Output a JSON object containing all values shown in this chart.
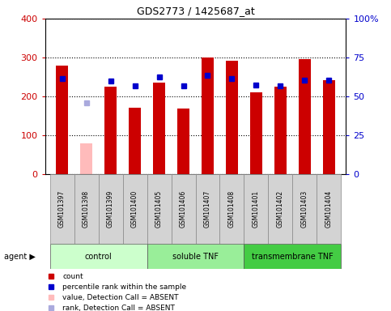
{
  "title": "GDS2773 / 1425687_at",
  "samples": [
    "GSM101397",
    "GSM101398",
    "GSM101399",
    "GSM101400",
    "GSM101405",
    "GSM101406",
    "GSM101407",
    "GSM101408",
    "GSM101401",
    "GSM101402",
    "GSM101403",
    "GSM101404"
  ],
  "counts": [
    280,
    null,
    225,
    170,
    235,
    168,
    300,
    292,
    210,
    225,
    295,
    242
  ],
  "counts_absent": [
    null,
    80,
    null,
    null,
    null,
    null,
    null,
    null,
    null,
    null,
    null,
    null
  ],
  "percentile_ranks": [
    245,
    null,
    240,
    228,
    250,
    228,
    255,
    245,
    230,
    228,
    242,
    242
  ],
  "percentile_ranks_absent": [
    null,
    183,
    null,
    null,
    null,
    null,
    null,
    null,
    null,
    null,
    null,
    null
  ],
  "groups": [
    {
      "label": "control",
      "start": 0,
      "end": 3,
      "color": "#ccffcc"
    },
    {
      "label": "soluble TNF",
      "start": 4,
      "end": 7,
      "color": "#99ee99"
    },
    {
      "label": "transmembrane TNF",
      "start": 8,
      "end": 11,
      "color": "#44cc44"
    }
  ],
  "ylim_left": [
    0,
    400
  ],
  "ylim_right": [
    0,
    100
  ],
  "yticks_left": [
    0,
    100,
    200,
    300,
    400
  ],
  "yticks_right": [
    0,
    25,
    50,
    75,
    100
  ],
  "ytick_labels_right": [
    "0",
    "25",
    "50",
    "75",
    "100%"
  ],
  "bar_color": "#cc0000",
  "bar_absent_color": "#ffbbbb",
  "dot_color": "#0000cc",
  "dot_absent_color": "#aaaadd",
  "background_color": "#ffffff",
  "plot_bg_color": "#ffffff",
  "ylabel_left_color": "#cc0000",
  "ylabel_right_color": "#0000cc",
  "grid_color": "#000000",
  "bar_width": 0.5
}
